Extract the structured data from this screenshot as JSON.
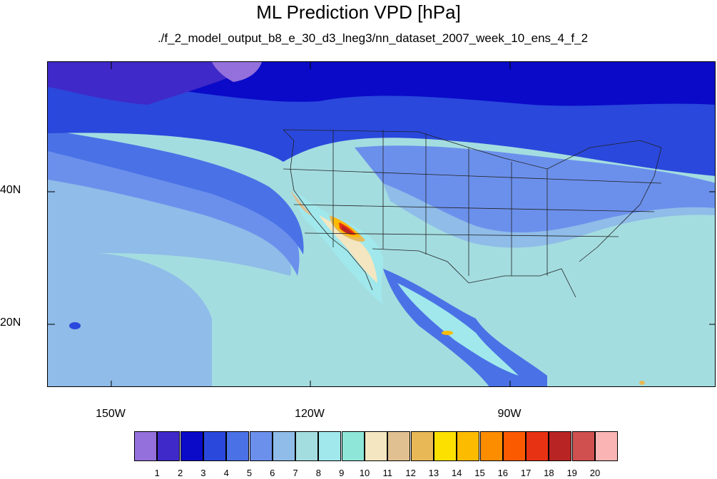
{
  "title": "ML Prediction VPD [hPa]",
  "subtitle": "./f_2_model_output_b8_e_30_d3_lneg3/nn_dataset_2007_week_10_ens_4_f_2",
  "axes": {
    "lat_labels": [
      "40N",
      "20N"
    ],
    "lon_labels": [
      "150W",
      "120W",
      "90W"
    ]
  },
  "legend": {
    "labels": [
      "1",
      "2",
      "3",
      "4",
      "5",
      "6",
      "7",
      "8",
      "9",
      "10",
      "11",
      "12",
      "13",
      "14",
      "15",
      "16",
      "17",
      "18",
      "19",
      "20"
    ],
    "colors": [
      "#9370db",
      "#3f29c8",
      "#0a0ac8",
      "#2a48dc",
      "#4a72e6",
      "#6b90ec",
      "#8fbce8",
      "#a4dde0",
      "#a0e8ec",
      "#8ee6d8",
      "#f3e6c0",
      "#e0c090",
      "#e8b856",
      "#fbe000",
      "#fdbb00",
      "#fc8c00",
      "#fb5a00",
      "#e83214",
      "#b82424",
      "#d05050",
      "#fbb4b4"
    ]
  },
  "chart_data": {
    "type": "heatmap",
    "title": "ML Prediction VPD [hPa]",
    "subtitle": "./f_2_model_output_b8_e_30_d3_lneg3/nn_dataset_2007_week_10_ens_4_f_2",
    "x_ticks": [
      "150W",
      "120W",
      "90W"
    ],
    "y_ticks": [
      "40N",
      "20N"
    ],
    "colorbar_levels": [
      1,
      2,
      3,
      4,
      5,
      6,
      7,
      8,
      9,
      10,
      11,
      12,
      13,
      14,
      15,
      16,
      17,
      18,
      19,
      20
    ],
    "grid": false,
    "legend_position": "bottom"
  }
}
